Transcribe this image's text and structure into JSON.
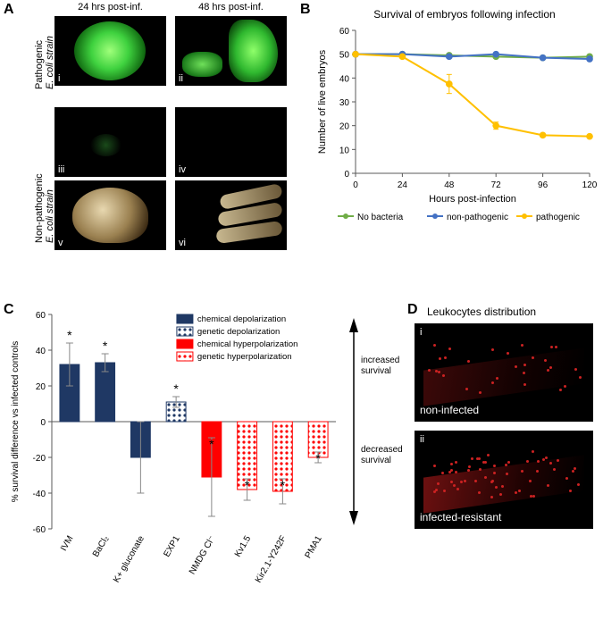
{
  "panelA": {
    "label": "A",
    "col_headers": [
      "24 hrs post-inf.",
      "48 hrs post-inf."
    ],
    "row_headers": [
      "Pathogenic\nE. coli strain",
      "Non-pathogenic\nE. coli strain"
    ],
    "romans": [
      "i",
      "ii",
      "iii",
      "iv",
      "v",
      "vi"
    ],
    "fontsize": 11
  },
  "panelB": {
    "label": "B",
    "title": "Survival of embryos following infection",
    "xlabel": "Hours post-infection",
    "ylabel": "Number of live embryos",
    "xlim": [
      0,
      120
    ],
    "xtick_step": 24,
    "ylim": [
      0,
      60
    ],
    "ytick_step": 10,
    "series": [
      {
        "name": "No bacteria",
        "color": "#70ad47",
        "marker": "circle",
        "x": [
          0,
          24,
          48,
          72,
          96,
          120
        ],
        "y": [
          50,
          50,
          49.5,
          49,
          48.5,
          49
        ]
      },
      {
        "name": "non-pathogenic",
        "color": "#4472c4",
        "marker": "circle",
        "x": [
          0,
          24,
          48,
          72,
          96,
          120
        ],
        "y": [
          50,
          50,
          49,
          50,
          48.5,
          48
        ]
      },
      {
        "name": "pathogenic",
        "color": "#ffc000",
        "marker": "circle",
        "x": [
          0,
          24,
          48,
          72,
          96,
          120
        ],
        "y": [
          50,
          49,
          37.5,
          20,
          16,
          15.5
        ],
        "yerr": [
          0,
          0,
          4,
          1.5,
          0,
          0
        ]
      }
    ],
    "title_fontsize": 12,
    "label_fontsize": 11,
    "tick_fontsize": 10,
    "line_width": 2,
    "marker_size": 5,
    "axis_color": "#595959",
    "grid": false,
    "background_color": "#ffffff"
  },
  "panelC": {
    "label": "C",
    "ylabel": "% survival difference vs infected controls",
    "ylim": [
      -60,
      60
    ],
    "ytick_step": 20,
    "arrow_labels": {
      "up": "increased\nsurvival",
      "down": "decreased\nsurvival"
    },
    "legend": [
      {
        "label": "chemical depolarization",
        "fill": "#1f3864",
        "pattern": "solid"
      },
      {
        "label": "genetic depolarization",
        "fill": "#1f3864",
        "pattern": "dots"
      },
      {
        "label": "chemical hyperpolarization",
        "fill": "#ff0000",
        "pattern": "solid"
      },
      {
        "label": "genetic hyperpolarization",
        "fill": "#ff0000",
        "pattern": "dots"
      }
    ],
    "bars": [
      {
        "name": "IVM",
        "value": 32,
        "err": 12,
        "fill": "#1f3864",
        "pattern": "solid",
        "sig": true
      },
      {
        "name": "BaCl₂",
        "value": 33,
        "err": 5,
        "fill": "#1f3864",
        "pattern": "solid",
        "sig": true
      },
      {
        "name": "K+ gluconate",
        "value": -20,
        "err": 20,
        "fill": "#1f3864",
        "pattern": "solid",
        "sig": false
      },
      {
        "name": "EXP1",
        "value": 11,
        "err": 3,
        "fill": "#1f3864",
        "pattern": "dots",
        "sig": true
      },
      {
        "name": "NMDG Cl⁻",
        "value": -31,
        "err": 22,
        "fill": "#ff0000",
        "pattern": "solid",
        "sig": true
      },
      {
        "name": "Kv1.5",
        "value": -38,
        "err": 6,
        "fill": "#ff0000",
        "pattern": "dots",
        "sig": true
      },
      {
        "name": "Kir2.1-Y242F",
        "value": -39,
        "err": 7,
        "fill": "#ff0000",
        "pattern": "dots",
        "sig": true
      },
      {
        "name": "PMA1",
        "value": -20,
        "err": 3,
        "fill": "#ff0000",
        "pattern": "dots",
        "sig": true
      }
    ],
    "bar_width": 0.55,
    "label_fontsize": 10,
    "tick_fontsize": 10,
    "axis_color": "#595959",
    "err_color": "#888888",
    "background_color": "#ffffff"
  },
  "panelD": {
    "label": "D",
    "title": "Leukocytes distribution",
    "images": [
      {
        "roman": "i",
        "caption": "non-infected"
      },
      {
        "roman": "ii",
        "caption": "infected-resistant"
      }
    ],
    "caption_fontsize": 12,
    "dot_color": "#cc2222"
  }
}
